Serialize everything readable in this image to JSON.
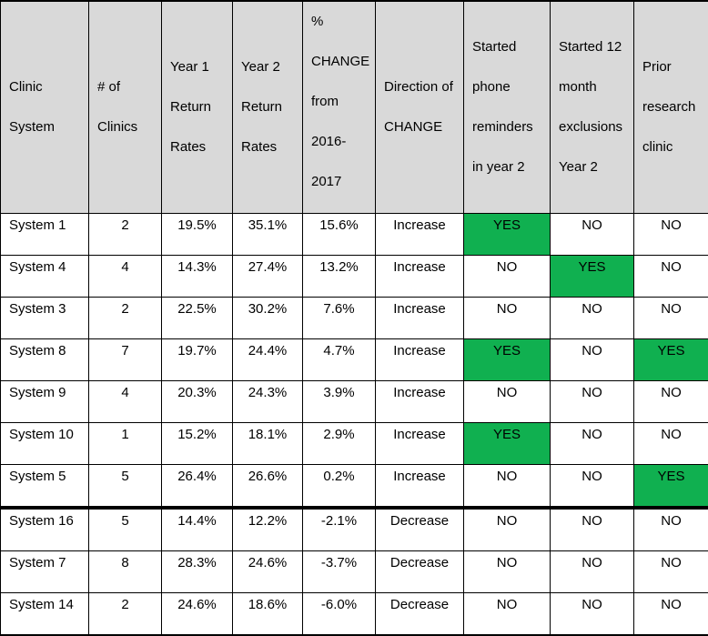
{
  "table": {
    "headers": [
      "Clinic System",
      "# of Clinics",
      "Year 1 Return Rates",
      "Year 2 Return Rates",
      "% CHANGE from 2016-2017",
      "Direction of CHANGE",
      "Started phone reminders in year 2",
      "Started 12 month exclusions Year 2",
      "Prior research clinic"
    ],
    "rows": [
      {
        "system": "System 1",
        "clinics": "2",
        "y1": "19.5%",
        "y2": "35.1%",
        "change": "15.6%",
        "direction": "Increase",
        "phone": "YES",
        "exclusions": "NO",
        "prior": "NO"
      },
      {
        "system": "System 4",
        "clinics": "4",
        "y1": "14.3%",
        "y2": "27.4%",
        "change": "13.2%",
        "direction": "Increase",
        "phone": "NO",
        "exclusions": "YES",
        "prior": "NO"
      },
      {
        "system": "System 3",
        "clinics": "2",
        "y1": "22.5%",
        "y2": "30.2%",
        "change": "7.6%",
        "direction": "Increase",
        "phone": "NO",
        "exclusions": "NO",
        "prior": "NO"
      },
      {
        "system": "System 8",
        "clinics": "7",
        "y1": "19.7%",
        "y2": "24.4%",
        "change": "4.7%",
        "direction": "Increase",
        "phone": "YES",
        "exclusions": "NO",
        "prior": "YES"
      },
      {
        "system": "System 9",
        "clinics": "4",
        "y1": "20.3%",
        "y2": "24.3%",
        "change": "3.9%",
        "direction": "Increase",
        "phone": "NO",
        "exclusions": "NO",
        "prior": "NO"
      },
      {
        "system": "System 10",
        "clinics": "1",
        "y1": "15.2%",
        "y2": "18.1%",
        "change": "2.9%",
        "direction": "Increase",
        "phone": "YES",
        "exclusions": "NO",
        "prior": "NO"
      },
      {
        "system": "System 5",
        "clinics": "5",
        "y1": "26.4%",
        "y2": "26.6%",
        "change": "0.2%",
        "direction": "Increase",
        "phone": "NO",
        "exclusions": "NO",
        "prior": "YES"
      },
      {
        "system": "System 16",
        "clinics": "5",
        "y1": "14.4%",
        "y2": "12.2%",
        "change": "-2.1%",
        "direction": "Decrease",
        "phone": "NO",
        "exclusions": "NO",
        "prior": "NO"
      },
      {
        "system": "System 7",
        "clinics": "8",
        "y1": "28.3%",
        "y2": "24.6%",
        "change": "-3.7%",
        "direction": "Decrease",
        "phone": "NO",
        "exclusions": "NO",
        "prior": "NO"
      },
      {
        "system": "System 14",
        "clinics": "2",
        "y1": "24.6%",
        "y2": "18.6%",
        "change": "-6.0%",
        "direction": "Decrease",
        "phone": "NO",
        "exclusions": "NO",
        "prior": "NO"
      }
    ]
  },
  "colors": {
    "header_bg": "#d9d9d9",
    "yes_highlight": "#10b050"
  }
}
